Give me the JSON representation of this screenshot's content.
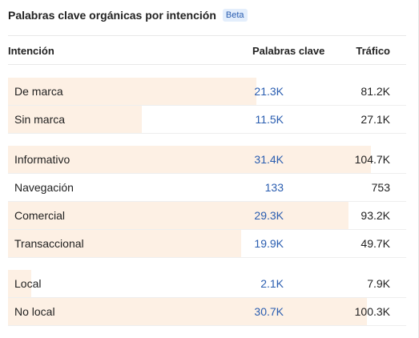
{
  "widget": {
    "title": "Palabras clave orgánicas por intención",
    "badge": "Beta"
  },
  "columns": {
    "intent": "Intención",
    "keywords": "Palabras clave",
    "traffic": "Tráfico"
  },
  "colors": {
    "bar": "#fdf0e4",
    "link": "#2a5db0",
    "badge_bg": "#e3eefc"
  },
  "groups": [
    {
      "rows": [
        {
          "intent": "De marca",
          "keywords": "21.3K",
          "traffic": "81.2K",
          "share": 0.65
        },
        {
          "intent": "Sin marca",
          "keywords": "11.5K",
          "traffic": "27.1K",
          "share": 0.35
        }
      ]
    },
    {
      "rows": [
        {
          "intent": "Informativo",
          "keywords": "31.4K",
          "traffic": "104.7K",
          "share": 0.95
        },
        {
          "intent": "Navegación",
          "keywords": "133",
          "traffic": "753",
          "share": 0.0
        },
        {
          "intent": "Comercial",
          "keywords": "29.3K",
          "traffic": "93.2K",
          "share": 0.89
        },
        {
          "intent": "Transaccional",
          "keywords": "19.9K",
          "traffic": "49.7K",
          "share": 0.61
        }
      ]
    },
    {
      "rows": [
        {
          "intent": "Local",
          "keywords": "2.1K",
          "traffic": "7.9K",
          "share": 0.06
        },
        {
          "intent": "No local",
          "keywords": "30.7K",
          "traffic": "100.3K",
          "share": 0.94
        }
      ]
    }
  ]
}
